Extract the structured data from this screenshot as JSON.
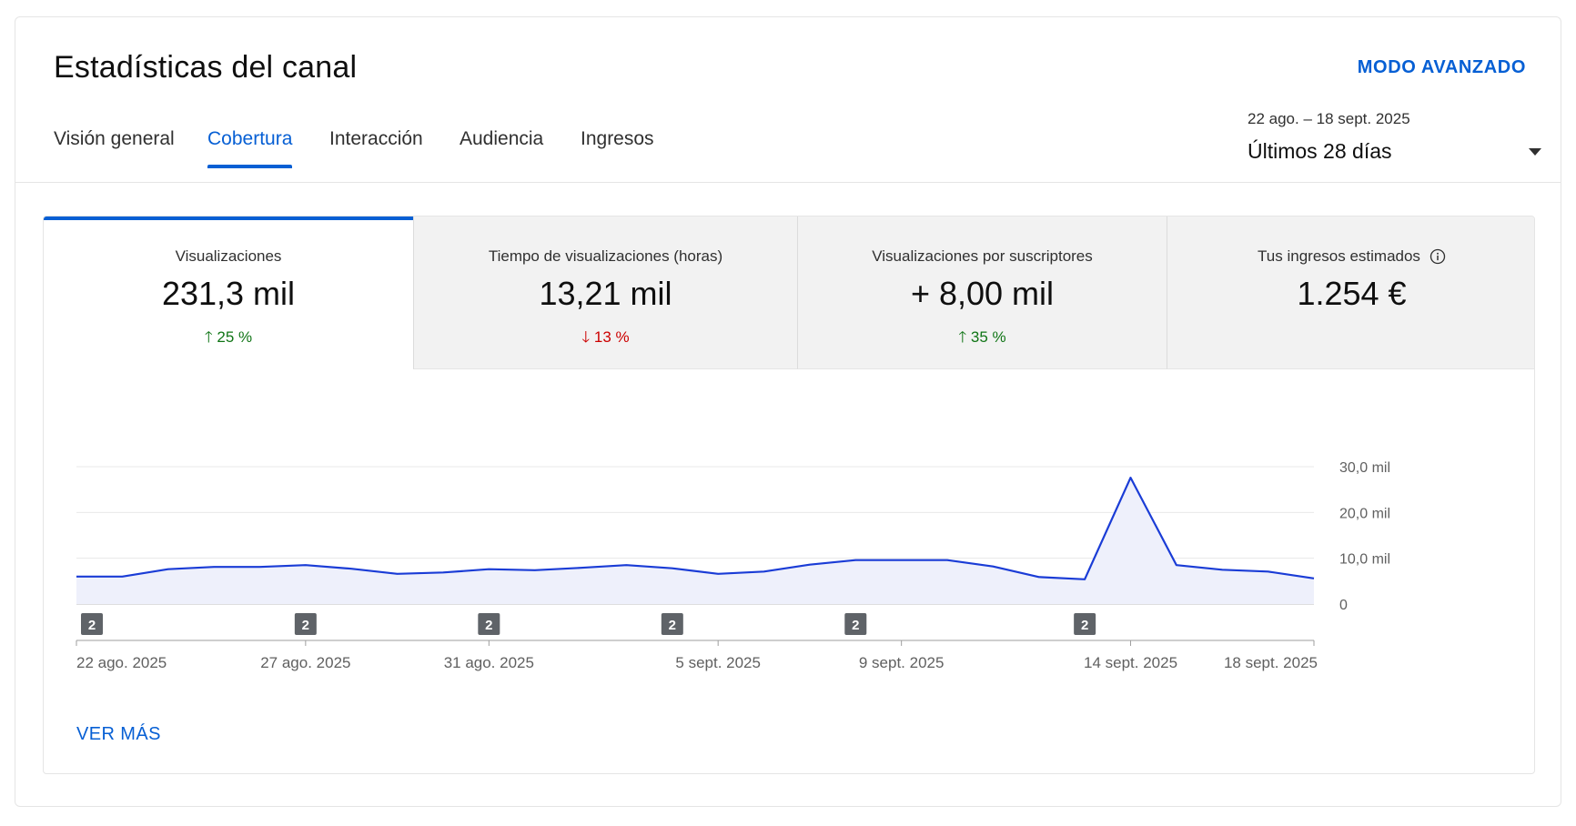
{
  "header": {
    "title": "Estadísticas del canal",
    "advanced_mode": "MODO AVANZADO"
  },
  "tabs": [
    {
      "label": "Visión general",
      "active": false
    },
    {
      "label": "Cobertura",
      "active": true
    },
    {
      "label": "Interacción",
      "active": false
    },
    {
      "label": "Audiencia",
      "active": false
    },
    {
      "label": "Ingresos",
      "active": false
    }
  ],
  "date_range": {
    "range": "22 ago. – 18 sept. 2025",
    "label": "Últimos 28 días"
  },
  "metrics": [
    {
      "label": "Visualizaciones",
      "value": "231,3 mil",
      "delta": "25 %",
      "direction": "up",
      "active": true
    },
    {
      "label": "Tiempo de visualizaciones (horas)",
      "value": "13,21 mil",
      "delta": "13 %",
      "direction": "down",
      "active": false
    },
    {
      "label": "Visualizaciones por suscriptores",
      "value": "+ 8,00 mil",
      "delta": "35 %",
      "direction": "up",
      "active": false
    },
    {
      "label": "Tus ingresos estimados",
      "value": "1.254 €",
      "delta": "",
      "direction": "none",
      "active": false,
      "icon": "info-icon"
    }
  ],
  "chart_data": {
    "type": "area",
    "series": [
      {
        "values": [
          6000,
          6000,
          7600,
          8100,
          8100,
          8500,
          7700,
          6600,
          6900,
          7600,
          7400,
          7900,
          8500,
          7800,
          6600,
          7100,
          8600,
          9600,
          9600,
          9600,
          8200,
          5900,
          5400,
          27600,
          8500,
          7500,
          7100,
          5600
        ]
      }
    ],
    "x_tick_labels": [
      "22 ago. 2025",
      "27 ago. 2025",
      "31 ago. 2025",
      "5 sept. 2025",
      "9 sept. 2025",
      "14 sept. 2025",
      "18 sept. 2025"
    ],
    "x_tick_index": [
      0,
      5,
      9,
      14,
      18,
      23,
      27
    ],
    "y_tick_labels": [
      "0",
      "10,0 mil",
      "20,0 mil",
      "30,0 mil"
    ],
    "y_ticks": [
      0,
      10000,
      20000,
      30000
    ],
    "ylim": [
      0,
      30000
    ],
    "grid": true,
    "annotations": [
      {
        "label": "2",
        "index": 0
      },
      {
        "label": "2",
        "index": 5
      },
      {
        "label": "2",
        "index": 9
      },
      {
        "label": "2",
        "index": 13
      },
      {
        "label": "2",
        "index": 17
      },
      {
        "label": "2",
        "index": 22
      }
    ],
    "colors": {
      "line": "#1a3cd6",
      "fill": "#eef0fb",
      "grid": "#e8e8e8",
      "axis": "#bdbdbd",
      "marker": "#5f6368"
    }
  },
  "footer": {
    "see_more": "VER MÁS"
  },
  "colors": {
    "accent": "#065fd4",
    "up": "#107516",
    "down": "#cc0000"
  }
}
